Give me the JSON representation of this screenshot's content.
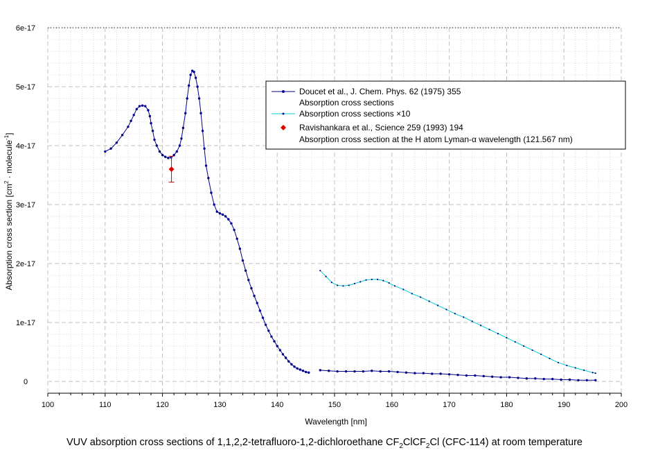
{
  "caption": {
    "text_part1": "VUV absorption cross sections of 1,1,2,2-tetrafluoro-1,2-dichloroethane CF",
    "sub1": "2",
    "text_part2": "ClCF",
    "sub2": "2",
    "text_part3": "Cl  (CFC-114) at room temperature"
  },
  "chart_data": {
    "type": "line",
    "xlabel": "Wavelength [nm]",
    "ylabel_main": "Absorption cross section [cm",
    "ylabel_sup1": "2",
    "ylabel_mid": " · molecule",
    "ylabel_sup2": "-1",
    "ylabel_end": "]",
    "xlim": [
      100,
      200
    ],
    "ylim": [
      0,
      6e-17
    ],
    "x_ticks": [
      100,
      110,
      120,
      130,
      140,
      150,
      160,
      170,
      180,
      190,
      200
    ],
    "x_tick_labels": [
      "100",
      "110",
      "120",
      "130",
      "140",
      "150",
      "160",
      "170",
      "180",
      "190",
      "200"
    ],
    "y_ticks": [
      0,
      1e-17,
      2e-17,
      3e-17,
      4e-17,
      5e-17,
      6e-17
    ],
    "y_tick_labels": [
      "0",
      "1e-17",
      "2e-17",
      "3e-17",
      "4e-17",
      "5e-17",
      "6e-17"
    ],
    "grid": true,
    "legend_position": "top-right",
    "legend": [
      {
        "line1": "Doucet et al., J. Chem. Phys. 62 (1975) 355",
        "line2": "Absorption cross sections"
      },
      {
        "line1": "Absorption cross sections ×10"
      },
      {
        "line1": "Ravishankara et al., Science 259 (1993) 194",
        "line2_a": "Absorption cross section at the H atom Lyman-",
        "line2_greek": "α",
        "line2_b": " wavelength (121.567 nm)"
      }
    ],
    "series": [
      {
        "name": "Absorption cross sections",
        "color": "#00008b",
        "x": [
          110,
          111,
          112,
          113,
          114,
          114.5,
          115,
          115.5,
          116,
          116.5,
          117,
          117.5,
          117.8,
          118,
          118.3,
          118.6,
          119,
          119.5,
          120,
          120.5,
          121,
          121.5,
          122,
          122.5,
          123,
          123.3,
          123.6,
          124,
          124.3,
          124.6,
          124.9,
          125.2,
          125.5,
          125.8,
          126.1,
          126.4,
          126.7,
          127,
          127.3,
          127.6,
          128,
          128.5,
          129,
          129.5,
          130,
          130.5,
          131,
          131.5,
          132,
          132.5,
          133,
          133.5,
          134,
          134.5,
          135,
          135.5,
          136,
          136.5,
          137,
          137.5,
          138,
          138.5,
          139,
          139.5,
          140,
          140.5,
          141,
          141.5,
          142,
          142.5,
          143,
          143.5,
          144,
          144.5,
          145,
          145.5
        ],
        "y": [
          3.9e-17,
          3.95e-17,
          4.05e-17,
          4.18e-17,
          4.32e-17,
          4.42e-17,
          4.52e-17,
          4.62e-17,
          4.67e-17,
          4.68e-17,
          4.67e-17,
          4.6e-17,
          4.5e-17,
          4.38e-17,
          4.25e-17,
          4.1e-17,
          4e-17,
          3.9e-17,
          3.84e-17,
          3.81e-17,
          3.79e-17,
          3.8e-17,
          3.84e-17,
          3.9e-17,
          4e-17,
          4.12e-17,
          4.3e-17,
          4.55e-17,
          4.8e-17,
          5.02e-17,
          5.2e-17,
          5.27e-17,
          5.25e-17,
          5.15e-17,
          5e-17,
          4.8e-17,
          4.55e-17,
          4.25e-17,
          3.95e-17,
          3.66e-17,
          3.45e-17,
          3.2e-17,
          3e-17,
          2.88e-17,
          2.85e-17,
          2.83e-17,
          2.8e-17,
          2.75e-17,
          2.68e-17,
          2.57e-17,
          2.42e-17,
          2.25e-17,
          2.05e-17,
          1.88e-17,
          1.72e-17,
          1.58e-17,
          1.45e-17,
          1.33e-17,
          1.2e-17,
          1.08e-17,
          9.6e-18,
          8.6e-18,
          7.6e-18,
          6.8e-18,
          6e-18,
          5.3e-18,
          4.6e-18,
          4e-18,
          3.4e-18,
          2.9e-18,
          2.5e-18,
          2.2e-18,
          2e-18,
          1.8e-18,
          1.6e-18,
          1.5e-18
        ]
      },
      {
        "name": "Absorption cross sections",
        "color": "#00008b",
        "x": [
          147.5,
          149,
          150.5,
          152,
          153.5,
          155,
          156.5,
          158,
          159.5,
          161,
          162.5,
          164,
          165.5,
          167,
          168.5,
          170,
          171.5,
          173,
          174.5,
          176,
          177.5,
          179,
          180.5,
          182,
          183.5,
          185,
          186.5,
          188,
          189.5,
          191,
          192.5,
          194,
          195.5
        ],
        "y": [
          1.9e-18,
          1.8e-18,
          1.7e-18,
          1.7e-18,
          1.7e-18,
          1.7e-18,
          1.8e-18,
          1.7e-18,
          1.7e-18,
          1.6e-18,
          1.5e-18,
          1.4e-18,
          1.4e-18,
          1.3e-18,
          1.3e-18,
          1.2e-18,
          1.1e-18,
          1e-18,
          1e-18,
          9e-19,
          8e-19,
          7e-19,
          7e-19,
          6e-19,
          5e-19,
          5e-19,
          4e-19,
          4e-19,
          3e-19,
          3e-19,
          2e-19,
          2e-19,
          2e-19
        ]
      },
      {
        "name": "Absorption cross sections ×10",
        "color": "#00ced1",
        "x": [
          147.5,
          148.5,
          149.5,
          150.5,
          151.5,
          152.5,
          153.5,
          154.5,
          155.5,
          156.5,
          157.5,
          158.5,
          159.5,
          160.5,
          162,
          163.5,
          165,
          166.5,
          168,
          169.5,
          171,
          172.5,
          174,
          175.5,
          177,
          178.5,
          180,
          181.5,
          183,
          184.5,
          186,
          187.5,
          189,
          190.5,
          192,
          193.5,
          195,
          195.5
        ],
        "y": [
          1.88e-17,
          1.78e-17,
          1.68e-17,
          1.63e-17,
          1.62e-17,
          1.63e-17,
          1.66e-17,
          1.69e-17,
          1.72e-17,
          1.73e-17,
          1.73e-17,
          1.71e-17,
          1.67e-17,
          1.62e-17,
          1.56e-17,
          1.49e-17,
          1.43e-17,
          1.36e-17,
          1.29e-17,
          1.22e-17,
          1.15e-17,
          1.09e-17,
          1.02e-17,
          9.5e-18,
          8.8e-18,
          8.1e-18,
          7.4e-18,
          6.7e-18,
          6e-18,
          5.3e-18,
          4.6e-18,
          3.9e-18,
          3.2e-18,
          2.7e-18,
          2.3e-18,
          1.9e-18,
          1.5e-18,
          1.4e-18
        ]
      },
      {
        "name": "Ravishankara et al., Science 259 (1993) 194",
        "color": "#e00000",
        "x": [
          121.567
        ],
        "y": [
          3.6e-17
        ],
        "error": [
          2.2e-18
        ]
      }
    ]
  }
}
